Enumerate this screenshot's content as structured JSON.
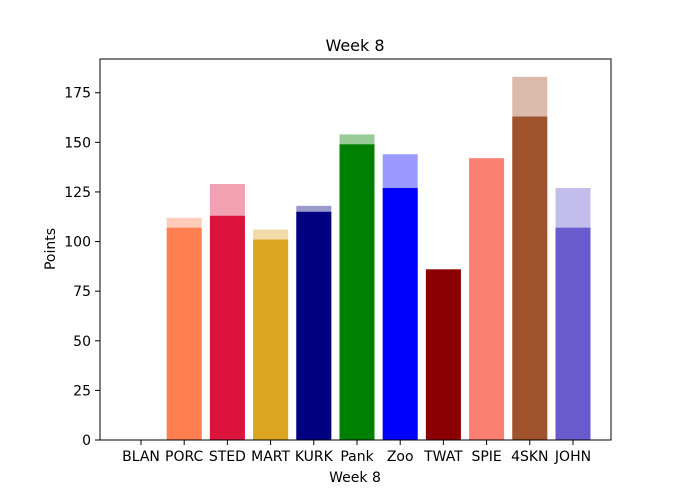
{
  "chart_data": {
    "type": "bar",
    "title": "Week 8",
    "xlabel": "Week 8",
    "ylabel": "Points",
    "ylim": [
      0,
      192
    ],
    "yticks": [
      0,
      25,
      50,
      75,
      100,
      125,
      150,
      175
    ],
    "grid": false,
    "legend": "none",
    "categories": [
      "BLAN",
      "PORC",
      "STED",
      "MART",
      "KURK",
      "Pank",
      "Zoo",
      "TWAT",
      "SPIE",
      "4SKN",
      "JOHN"
    ],
    "series": [
      {
        "role": "actual",
        "values": [
          0,
          107,
          113,
          101,
          115,
          149,
          127,
          86,
          142,
          163,
          107
        ]
      },
      {
        "role": "projected",
        "values": [
          0,
          112,
          129,
          106,
          118,
          154,
          144,
          86,
          142,
          183,
          127
        ]
      }
    ],
    "colors": [
      "#ffffff",
      "#ff7f50",
      "#dc143c",
      "#daa520",
      "#000080",
      "#008000",
      "#0000ff",
      "#8b0000",
      "#fa8072",
      "#a0522d",
      "#6a5acd"
    ],
    "projected_opacity": 0.4
  }
}
